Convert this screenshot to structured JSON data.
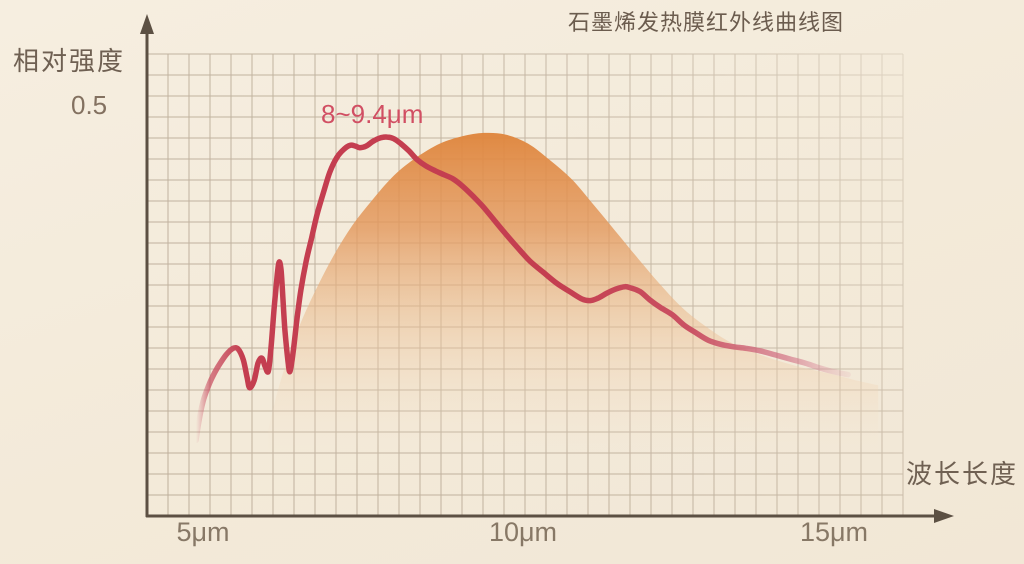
{
  "header": {
    "title": "石墨烯发热膜红外线曲线图"
  },
  "axes": {
    "y_label": "相对强度",
    "y_tick": "0.5",
    "x_label": "波长长度",
    "x_ticks": [
      "5μm",
      "10μm",
      "15μm"
    ]
  },
  "annotation": {
    "text": "8~9.4μm"
  },
  "colors": {
    "background": "#f3ead9",
    "grid": "#b2a28e",
    "axis": "#5c5043",
    "curve": "#c43e50",
    "fill_top": "#df853c",
    "annotation_text": "#d14f63",
    "title_text": "#6b5c4e",
    "tick_text": "#877866"
  },
  "chart_data": {
    "type": "area",
    "title": "石墨烯发热膜红外线曲线图",
    "xlabel": "波长长度",
    "ylabel": "相对强度",
    "x_unit": "μm",
    "x_tick_labels": [
      "5μm",
      "10μm",
      "15μm"
    ],
    "x_tick_values": [
      5,
      10,
      15
    ],
    "y_tick_labels": [
      "0.5"
    ],
    "y_tick_values": [
      0.5
    ],
    "xlim": [
      4.13,
      15.94
    ],
    "ylim": [
      0,
      0.56
    ],
    "grid": true,
    "legend": "none",
    "peak_annotation": {
      "text": "8~9.4μm",
      "x_range_um": [
        8,
        9.4
      ]
    },
    "series": [
      {
        "name": "curve",
        "type": "line",
        "points": [
          [
            4.89,
            0.092
          ],
          [
            4.94,
            0.117
          ],
          [
            5.0,
            0.139
          ],
          [
            5.06,
            0.153
          ],
          [
            5.14,
            0.168
          ],
          [
            5.23,
            0.181
          ],
          [
            5.36,
            0.196
          ],
          [
            5.47,
            0.204
          ],
          [
            5.55,
            0.203
          ],
          [
            5.63,
            0.19
          ],
          [
            5.69,
            0.168
          ],
          [
            5.73,
            0.156
          ],
          [
            5.8,
            0.165
          ],
          [
            5.86,
            0.186
          ],
          [
            5.92,
            0.192
          ],
          [
            5.97,
            0.182
          ],
          [
            6.02,
            0.176
          ],
          [
            6.06,
            0.202
          ],
          [
            6.11,
            0.251
          ],
          [
            6.16,
            0.293
          ],
          [
            6.19,
            0.309
          ],
          [
            6.22,
            0.299
          ],
          [
            6.25,
            0.263
          ],
          [
            6.28,
            0.226
          ],
          [
            6.33,
            0.187
          ],
          [
            6.36,
            0.176
          ],
          [
            6.41,
            0.2
          ],
          [
            6.47,
            0.241
          ],
          [
            6.53,
            0.275
          ],
          [
            6.61,
            0.309
          ],
          [
            6.69,
            0.336
          ],
          [
            6.78,
            0.366
          ],
          [
            6.88,
            0.393
          ],
          [
            6.98,
            0.418
          ],
          [
            7.09,
            0.436
          ],
          [
            7.2,
            0.446
          ],
          [
            7.3,
            0.451
          ],
          [
            7.38,
            0.45
          ],
          [
            7.45,
            0.448
          ],
          [
            7.55,
            0.45
          ],
          [
            7.66,
            0.456
          ],
          [
            7.77,
            0.46
          ],
          [
            7.88,
            0.461
          ],
          [
            7.98,
            0.459
          ],
          [
            8.09,
            0.453
          ],
          [
            8.22,
            0.444
          ],
          [
            8.34,
            0.434
          ],
          [
            8.48,
            0.426
          ],
          [
            8.63,
            0.42
          ],
          [
            8.77,
            0.415
          ],
          [
            8.91,
            0.41
          ],
          [
            9.06,
            0.401
          ],
          [
            9.22,
            0.389
          ],
          [
            9.38,
            0.376
          ],
          [
            9.55,
            0.36
          ],
          [
            9.72,
            0.344
          ],
          [
            9.91,
            0.327
          ],
          [
            10.11,
            0.31
          ],
          [
            10.31,
            0.297
          ],
          [
            10.53,
            0.283
          ],
          [
            10.73,
            0.273
          ],
          [
            10.92,
            0.264
          ],
          [
            11.05,
            0.262
          ],
          [
            11.17,
            0.265
          ],
          [
            11.31,
            0.271
          ],
          [
            11.45,
            0.276
          ],
          [
            11.59,
            0.279
          ],
          [
            11.7,
            0.277
          ],
          [
            11.83,
            0.273
          ],
          [
            11.98,
            0.263
          ],
          [
            12.14,
            0.254
          ],
          [
            12.33,
            0.245
          ],
          [
            12.52,
            0.232
          ],
          [
            12.7,
            0.223
          ],
          [
            12.89,
            0.214
          ],
          [
            13.08,
            0.209
          ],
          [
            13.28,
            0.206
          ],
          [
            13.48,
            0.204
          ],
          [
            13.7,
            0.201
          ],
          [
            13.94,
            0.196
          ],
          [
            14.17,
            0.191
          ],
          [
            14.41,
            0.186
          ],
          [
            14.64,
            0.18
          ],
          [
            14.88,
            0.175
          ],
          [
            15.08,
            0.172
          ]
        ]
      },
      {
        "name": "area",
        "type": "area",
        "points": [
          [
            6.02,
            0.105
          ],
          [
            6.17,
            0.153
          ],
          [
            6.36,
            0.2
          ],
          [
            6.56,
            0.241
          ],
          [
            6.8,
            0.281
          ],
          [
            7.05,
            0.318
          ],
          [
            7.33,
            0.353
          ],
          [
            7.64,
            0.384
          ],
          [
            7.98,
            0.414
          ],
          [
            8.33,
            0.436
          ],
          [
            8.7,
            0.453
          ],
          [
            9.05,
            0.462
          ],
          [
            9.39,
            0.466
          ],
          [
            9.73,
            0.464
          ],
          [
            10.08,
            0.453
          ],
          [
            10.42,
            0.433
          ],
          [
            10.77,
            0.409
          ],
          [
            11.11,
            0.378
          ],
          [
            11.45,
            0.346
          ],
          [
            11.8,
            0.313
          ],
          [
            12.14,
            0.282
          ],
          [
            12.48,
            0.254
          ],
          [
            12.83,
            0.232
          ],
          [
            13.2,
            0.213
          ],
          [
            13.58,
            0.2
          ],
          [
            13.98,
            0.189
          ],
          [
            14.39,
            0.18
          ],
          [
            14.8,
            0.173
          ],
          [
            15.2,
            0.165
          ],
          [
            15.55,
            0.159
          ]
        ]
      }
    ]
  }
}
